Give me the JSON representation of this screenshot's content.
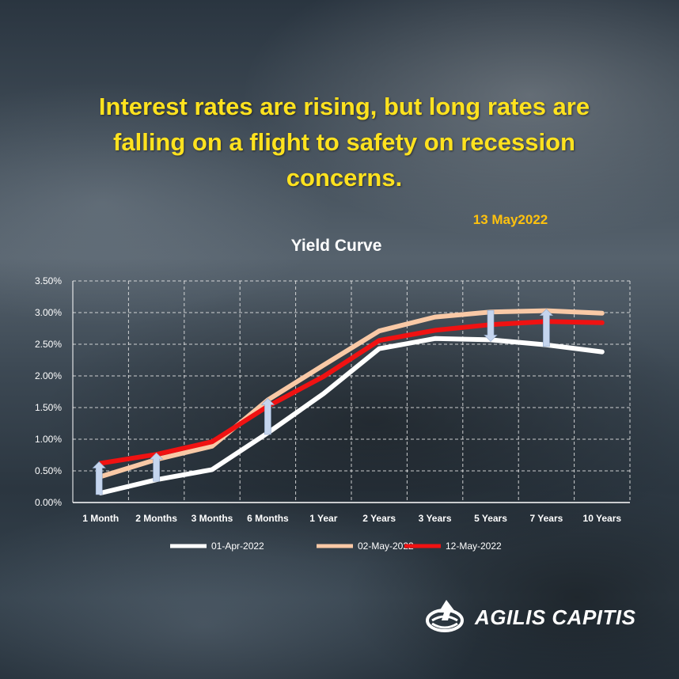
{
  "headline": "Interest rates are rising, but long rates are falling on a flight to safety on recession concerns.",
  "date": "13 May2022",
  "brand": {
    "name": "AGILIS CAPITIS",
    "logo_icon": "globe-arrow-icon"
  },
  "chart_data": {
    "type": "line",
    "title": "Yield Curve",
    "categories": [
      "1 Month",
      "2 Months",
      "3 Months",
      "6 Months",
      "1 Year",
      "2 Years",
      "3 Years",
      "5 Years",
      "7 Years",
      "10 Years"
    ],
    "series": [
      {
        "name": "01-Apr-2022",
        "color": "#ffffff",
        "values": [
          0.15,
          0.36,
          0.52,
          1.1,
          1.72,
          2.43,
          2.59,
          2.57,
          2.49,
          2.38
        ]
      },
      {
        "name": "02-May-2022",
        "color": "#f9c9a6",
        "values": [
          0.41,
          0.68,
          0.89,
          1.62,
          2.17,
          2.71,
          2.93,
          3.01,
          3.03,
          2.99
        ]
      },
      {
        "name": "12-May-2022",
        "color": "#f01212",
        "values": [
          0.62,
          0.76,
          0.96,
          1.52,
          1.99,
          2.56,
          2.72,
          2.81,
          2.86,
          2.84
        ]
      }
    ],
    "y_ticks": [
      "0.00%",
      "0.50%",
      "1.00%",
      "1.50%",
      "2.00%",
      "2.50%",
      "3.00%",
      "3.50%"
    ],
    "ylim": [
      0,
      3.5
    ],
    "grid": true,
    "legend": "bottom",
    "arrows": [
      {
        "category": "1 Month",
        "direction": "up"
      },
      {
        "category": "2 Months",
        "direction": "up"
      },
      {
        "category": "6 Months",
        "direction": "up"
      },
      {
        "category": "5 Years",
        "direction": "down"
      },
      {
        "category": "7 Years",
        "direction": "up"
      }
    ]
  }
}
